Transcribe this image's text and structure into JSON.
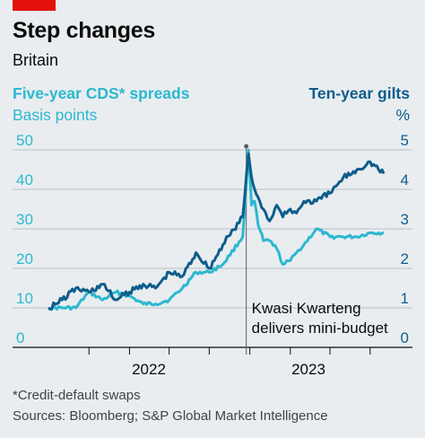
{
  "header": {
    "title": "Step changes",
    "subtitle": "Britain"
  },
  "axes": {
    "left_series": "Five-year CDS* spreads",
    "left_unit": "Basis points",
    "right_series": "Ten-year gilts",
    "right_unit": "%"
  },
  "annotation": {
    "line1": "Kwasi Kwarteng",
    "line2": "delivers mini-budget"
  },
  "footer": {
    "footnote": "*Credit-default swaps",
    "source": "Sources: Bloomberg; S&P Global Market Intelligence"
  },
  "colors": {
    "background": "#e9edf0",
    "cds": "#2bb8cf",
    "gilts": "#0e5d8c",
    "accent_tag": "#e3120b"
  },
  "chart_data": {
    "type": "line",
    "title": "Step changes",
    "subtitle": "Britain",
    "x_tick_labels": [
      "2022",
      "2023"
    ],
    "annotation_event": {
      "date": "2022-09-23",
      "label": "Kwasi Kwarteng delivers mini-budget"
    },
    "left_axis": {
      "label": "Basis points",
      "range": [
        0,
        50
      ],
      "ticks": [
        0,
        10,
        20,
        30,
        40,
        50
      ]
    },
    "right_axis": {
      "label": "%",
      "range": [
        0,
        5
      ],
      "ticks": [
        0,
        1,
        2,
        3,
        4,
        5
      ]
    },
    "grid": "horizontal",
    "series": [
      {
        "name": "Five-year CDS* spreads",
        "axis": "left",
        "x": [
          "2021-07-01",
          "2021-08-01",
          "2021-09-01",
          "2021-10-01",
          "2021-11-01",
          "2021-12-01",
          "2022-01-01",
          "2022-02-01",
          "2022-03-01",
          "2022-04-01",
          "2022-05-01",
          "2022-06-01",
          "2022-07-01",
          "2022-08-01",
          "2022-09-15",
          "2022-09-28",
          "2022-10-05",
          "2022-10-12",
          "2022-10-20",
          "2022-11-01",
          "2022-11-15",
          "2022-12-01",
          "2022-12-15",
          "2023-01-01",
          "2023-01-15",
          "2023-02-01",
          "2023-03-01",
          "2023-04-01",
          "2023-05-01",
          "2023-06-01",
          "2023-07-01",
          "2023-08-01"
        ],
        "values": [
          10,
          10,
          10,
          14,
          12,
          14,
          13,
          11,
          11,
          12,
          15,
          19,
          19,
          21,
          28,
          50,
          36,
          37,
          31,
          27,
          27,
          25,
          21,
          22,
          24,
          26,
          30,
          28,
          28,
          28,
          29,
          29
        ]
      },
      {
        "name": "Ten-year gilts",
        "axis": "right",
        "x": [
          "2021-07-01",
          "2021-08-01",
          "2021-09-01",
          "2021-10-01",
          "2021-11-01",
          "2021-12-01",
          "2022-01-01",
          "2022-02-01",
          "2022-03-01",
          "2022-04-01",
          "2022-05-01",
          "2022-06-01",
          "2022-07-01",
          "2022-08-01",
          "2022-09-15",
          "2022-09-28",
          "2022-10-05",
          "2022-10-12",
          "2022-10-20",
          "2022-11-01",
          "2022-11-15",
          "2022-12-01",
          "2022-12-15",
          "2023-01-01",
          "2023-01-15",
          "2023-02-01",
          "2023-03-01",
          "2023-04-01",
          "2023-05-01",
          "2023-06-01",
          "2023-07-01",
          "2023-08-01"
        ],
        "values": [
          1.0,
          1.2,
          1.5,
          1.4,
          1.6,
          1.2,
          1.4,
          1.6,
          1.5,
          1.9,
          1.8,
          2.4,
          2.0,
          2.6,
          3.3,
          4.9,
          4.3,
          4.0,
          3.8,
          3.5,
          3.2,
          3.6,
          3.3,
          3.5,
          3.4,
          3.7,
          3.7,
          3.9,
          4.3,
          4.5,
          4.7,
          4.4
        ]
      }
    ]
  }
}
